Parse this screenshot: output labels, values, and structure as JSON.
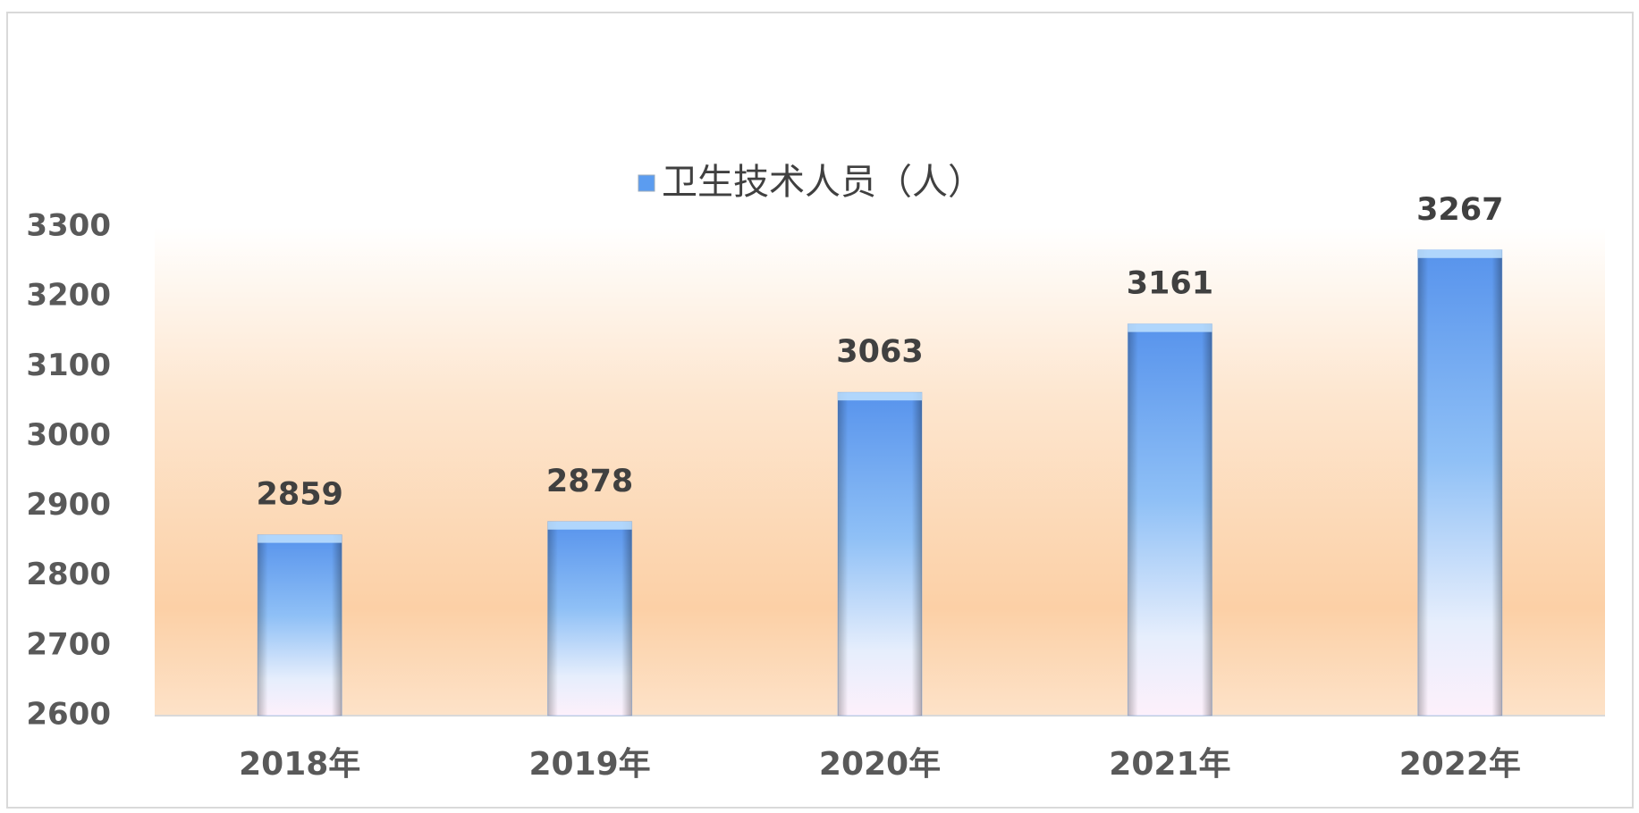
{
  "chart_data": {
    "type": "bar",
    "categories": [
      "2018年",
      "2019年",
      "2020年",
      "2021年",
      "2022年"
    ],
    "series": [
      {
        "name": "卫生技术人员（人）",
        "color": "#5b9cf0",
        "values": [
          2859,
          2878,
          3063,
          3161,
          3267
        ]
      }
    ],
    "ylim": [
      2600,
      3300
    ],
    "yticks": [
      2600,
      2700,
      2800,
      2900,
      3000,
      3100,
      3200,
      3300
    ],
    "grid": false,
    "legend": "top"
  }
}
